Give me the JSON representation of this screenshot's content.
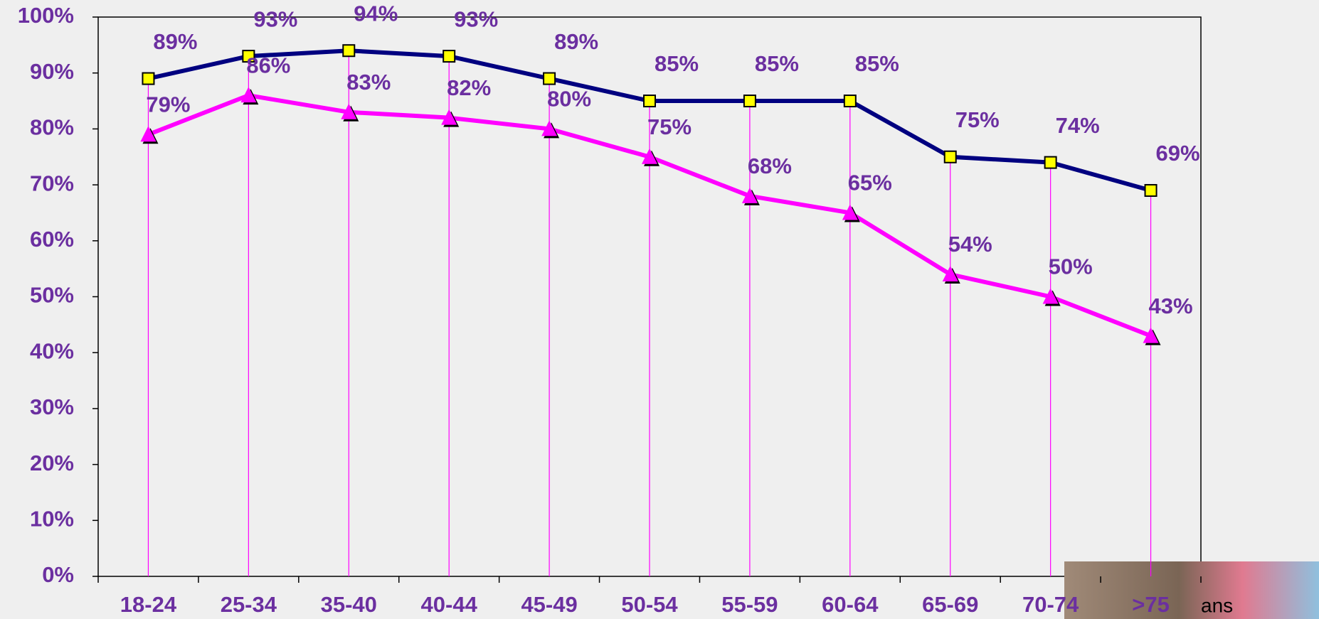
{
  "chart_data": {
    "type": "line",
    "categories": [
      "18-24",
      "25-34",
      "35-40",
      "40-44",
      "45-49",
      "50-54",
      "55-59",
      "60-64",
      "65-69",
      "70-74",
      ">75"
    ],
    "series": [
      {
        "color": "#000080",
        "marker": "square",
        "values": [
          89,
          93,
          94,
          93,
          89,
          85,
          85,
          85,
          75,
          74,
          69
        ],
        "value_labels": [
          "89%",
          "93%",
          "94%",
          "93%",
          "89%",
          "85%",
          "85%",
          "85%",
          "75%",
          "74%",
          "69%"
        ]
      },
      {
        "color": "#ff00ff",
        "marker": "triangle",
        "values": [
          79,
          86,
          83,
          82,
          80,
          75,
          68,
          65,
          54,
          50,
          43
        ],
        "value_labels": [
          "79%",
          "86%",
          "83%",
          "82%",
          "80%",
          "75%",
          "68%",
          "65%",
          "54%",
          "50%",
          "43%"
        ]
      }
    ],
    "ylim": [
      0,
      100
    ],
    "yticks": [
      {
        "value": 0,
        "label": "0%"
      },
      {
        "value": 10,
        "label": "10%"
      },
      {
        "value": 20,
        "label": "20%"
      },
      {
        "value": 30,
        "label": "30%"
      },
      {
        "value": 40,
        "label": "40%"
      },
      {
        "value": 50,
        "label": "50%"
      },
      {
        "value": 60,
        "label": "60%"
      },
      {
        "value": 70,
        "label": "70%"
      },
      {
        "value": 80,
        "label": "80%"
      },
      {
        "value": 90,
        "label": "90%"
      },
      {
        "value": 100,
        "label": "100%"
      }
    ],
    "drop_lines": true,
    "annotation": "ans"
  }
}
